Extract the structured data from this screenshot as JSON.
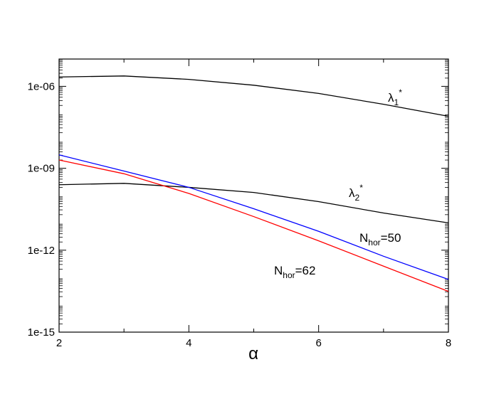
{
  "chart_data": {
    "type": "line",
    "x_label": "α",
    "xlim": [
      2,
      8
    ],
    "xticks": [
      2,
      4,
      6,
      8
    ],
    "ylim": [
      1e-15,
      1e-05
    ],
    "log_y": true,
    "yticks": [
      {
        "value": 1e-06,
        "label": "1e-06"
      },
      {
        "value": 1e-09,
        "label": "1e-09"
      },
      {
        "value": 1e-12,
        "label": "1e-12"
      },
      {
        "value": 1e-15,
        "label": "1e-15"
      }
    ],
    "x": [
      2,
      3,
      4,
      5,
      6,
      7,
      8
    ],
    "series": [
      {
        "color": "#000000",
        "values": [
          2.2e-06,
          2.4e-06,
          1.8e-06,
          1.1e-06,
          5.5e-07,
          2.2e-07,
          8e-08
        ]
      },
      {
        "color": "#000000",
        "values": [
          2.5e-10,
          2.8e-10,
          2e-10,
          1.3e-10,
          6e-11,
          2.3e-11,
          1e-11
        ]
      },
      {
        "color": "#0000ff",
        "values": [
          3.1e-09,
          7.9e-10,
          2e-10,
          3.3e-11,
          4.9e-12,
          6e-13,
          8.5e-14
        ]
      },
      {
        "color": "#ff0000",
        "values": [
          2e-09,
          6.3e-10,
          1.2e-10,
          1.7e-11,
          2.2e-12,
          2.6e-13,
          3.1e-14
        ]
      }
    ],
    "annotations": [
      {
        "text": "λ",
        "sub": "1",
        "sup": "*"
      },
      {
        "text": "λ",
        "sub": "2",
        "sup": "*"
      },
      {
        "text": "N",
        "sub": "hor",
        "tail": "=50"
      },
      {
        "text": "N",
        "sub": "hor",
        "tail": "=62"
      }
    ]
  }
}
